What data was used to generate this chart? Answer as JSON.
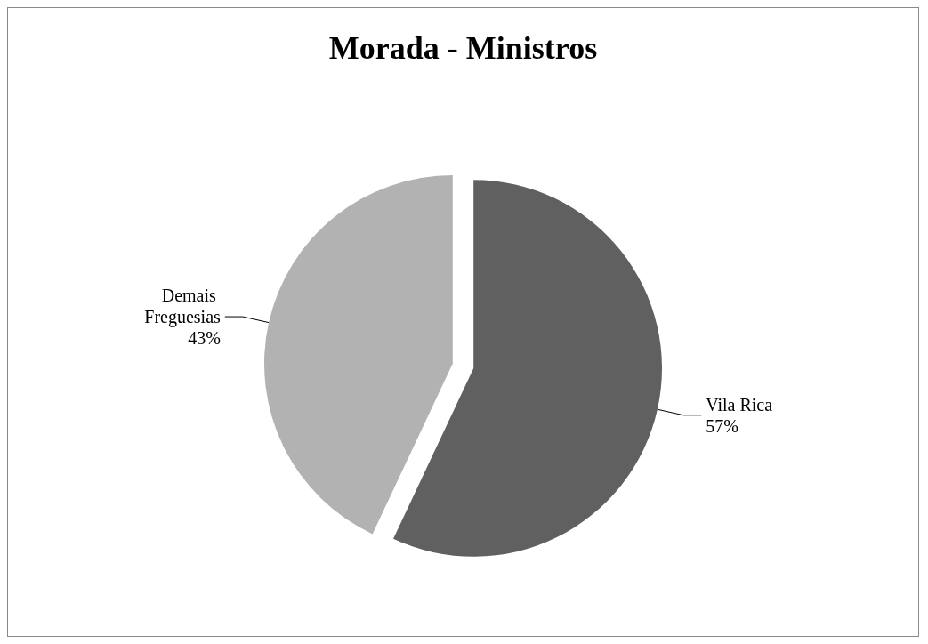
{
  "chart_data": {
    "type": "pie",
    "title": "Morada - Ministros",
    "categories": [
      "Vila Rica",
      "Demais Freguesias"
    ],
    "values": [
      57,
      43
    ],
    "colors": [
      "#606060",
      "#b2b2b2"
    ],
    "value_labels": [
      "57%",
      "43%"
    ],
    "legend": false
  }
}
